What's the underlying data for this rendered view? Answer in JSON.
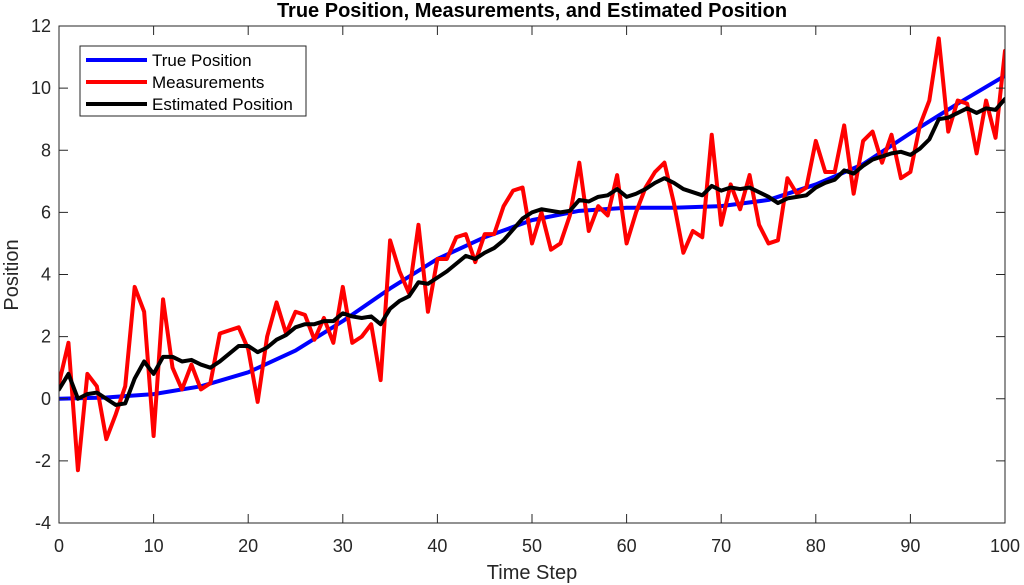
{
  "chart_data": {
    "type": "line",
    "title": "True Position, Measurements, and Estimated Position",
    "xlabel": "Time Step",
    "ylabel": "Position",
    "xlim": [
      0,
      100
    ],
    "ylim": [
      -4,
      12
    ],
    "xticks": [
      0,
      10,
      20,
      30,
      40,
      50,
      60,
      70,
      80,
      90,
      100
    ],
    "yticks": [
      -4,
      -2,
      0,
      2,
      4,
      6,
      8,
      10,
      12
    ],
    "grid": false,
    "legend_position": "top-left",
    "series": [
      {
        "name": "True Position",
        "color": "#0000ff",
        "x": [
          0,
          5,
          10,
          15,
          20,
          25,
          30,
          35,
          40,
          45,
          50,
          55,
          60,
          65,
          70,
          75,
          80,
          85,
          90,
          95,
          100
        ],
        "y": [
          0,
          0.04,
          0.15,
          0.4,
          0.85,
          1.55,
          2.5,
          3.55,
          4.5,
          5.2,
          5.75,
          6.05,
          6.15,
          6.15,
          6.2,
          6.4,
          6.9,
          7.55,
          8.55,
          9.5,
          10.4
        ]
      },
      {
        "name": "Measurements",
        "color": "#ff0000",
        "x": [
          0,
          1,
          2,
          3,
          4,
          5,
          6,
          7,
          8,
          9,
          10,
          11,
          12,
          13,
          14,
          15,
          16,
          17,
          18,
          19,
          20,
          21,
          22,
          23,
          24,
          25,
          26,
          27,
          28,
          29,
          30,
          31,
          32,
          33,
          34,
          35,
          36,
          37,
          38,
          39,
          40,
          41,
          42,
          43,
          44,
          45,
          46,
          47,
          48,
          49,
          50,
          51,
          52,
          53,
          54,
          55,
          56,
          57,
          58,
          59,
          60,
          61,
          62,
          63,
          64,
          65,
          66,
          67,
          68,
          69,
          70,
          71,
          72,
          73,
          74,
          75,
          76,
          77,
          78,
          79,
          80,
          81,
          82,
          83,
          84,
          85,
          86,
          87,
          88,
          89,
          90,
          91,
          92,
          93,
          94,
          95,
          96,
          97,
          98,
          99,
          100
        ],
        "y": [
          0.5,
          1.8,
          -2.3,
          0.8,
          0.4,
          -1.3,
          -0.5,
          0.4,
          3.6,
          2.8,
          -1.2,
          3.2,
          1.0,
          0.3,
          1.1,
          0.3,
          0.5,
          2.1,
          2.2,
          2.3,
          1.6,
          -0.1,
          2.0,
          3.1,
          2.1,
          2.8,
          2.7,
          1.9,
          2.6,
          1.8,
          3.6,
          1.8,
          2.0,
          2.4,
          0.6,
          5.1,
          4.1,
          3.4,
          5.6,
          2.8,
          4.5,
          4.5,
          5.2,
          5.3,
          4.4,
          5.3,
          5.3,
          6.2,
          6.7,
          6.8,
          5.0,
          6.0,
          4.8,
          5.0,
          5.9,
          7.6,
          5.4,
          6.2,
          5.9,
          7.2,
          5.0,
          6.0,
          6.8,
          7.3,
          7.6,
          6.3,
          4.7,
          5.4,
          5.2,
          8.5,
          5.6,
          6.9,
          6.1,
          7.2,
          5.6,
          5.0,
          5.1,
          7.1,
          6.6,
          6.8,
          8.3,
          7.3,
          7.3,
          8.8,
          6.6,
          8.3,
          8.6,
          7.6,
          8.5,
          7.1,
          7.3,
          8.8,
          9.6,
          11.6,
          8.6,
          9.6,
          9.5,
          7.9,
          9.6,
          8.4,
          11.2
        ]
      },
      {
        "name": "Estimated Position",
        "color": "#000000",
        "x": [
          0,
          1,
          2,
          3,
          4,
          5,
          6,
          7,
          8,
          9,
          10,
          11,
          12,
          13,
          14,
          15,
          16,
          17,
          18,
          19,
          20,
          21,
          22,
          23,
          24,
          25,
          26,
          27,
          28,
          29,
          30,
          31,
          32,
          33,
          34,
          35,
          36,
          37,
          38,
          39,
          40,
          41,
          42,
          43,
          44,
          45,
          46,
          47,
          48,
          49,
          50,
          51,
          52,
          53,
          54,
          55,
          56,
          57,
          58,
          59,
          60,
          61,
          62,
          63,
          64,
          65,
          66,
          67,
          68,
          69,
          70,
          71,
          72,
          73,
          74,
          75,
          76,
          77,
          78,
          79,
          80,
          81,
          82,
          83,
          84,
          85,
          86,
          87,
          88,
          89,
          90,
          91,
          92,
          93,
          94,
          95,
          96,
          97,
          98,
          99,
          100
        ],
        "y": [
          0.3,
          0.8,
          0.0,
          0.15,
          0.2,
          0.0,
          -0.2,
          -0.15,
          0.65,
          1.2,
          0.8,
          1.35,
          1.35,
          1.2,
          1.25,
          1.1,
          1.0,
          1.2,
          1.45,
          1.7,
          1.7,
          1.5,
          1.65,
          1.9,
          2.05,
          2.3,
          2.4,
          2.4,
          2.5,
          2.5,
          2.75,
          2.65,
          2.6,
          2.65,
          2.4,
          2.9,
          3.15,
          3.3,
          3.75,
          3.7,
          3.9,
          4.1,
          4.35,
          4.6,
          4.5,
          4.7,
          4.85,
          5.1,
          5.45,
          5.8,
          6.0,
          6.1,
          6.05,
          6.0,
          6.05,
          6.4,
          6.35,
          6.5,
          6.55,
          6.75,
          6.5,
          6.6,
          6.75,
          6.95,
          7.1,
          6.95,
          6.75,
          6.65,
          6.55,
          6.85,
          6.7,
          6.8,
          6.75,
          6.8,
          6.65,
          6.5,
          6.3,
          6.45,
          6.5,
          6.55,
          6.8,
          6.95,
          7.05,
          7.35,
          7.25,
          7.5,
          7.7,
          7.8,
          7.9,
          7.95,
          7.85,
          8.05,
          8.35,
          9.0,
          9.05,
          9.2,
          9.35,
          9.2,
          9.35,
          9.3,
          9.65
        ]
      }
    ]
  }
}
